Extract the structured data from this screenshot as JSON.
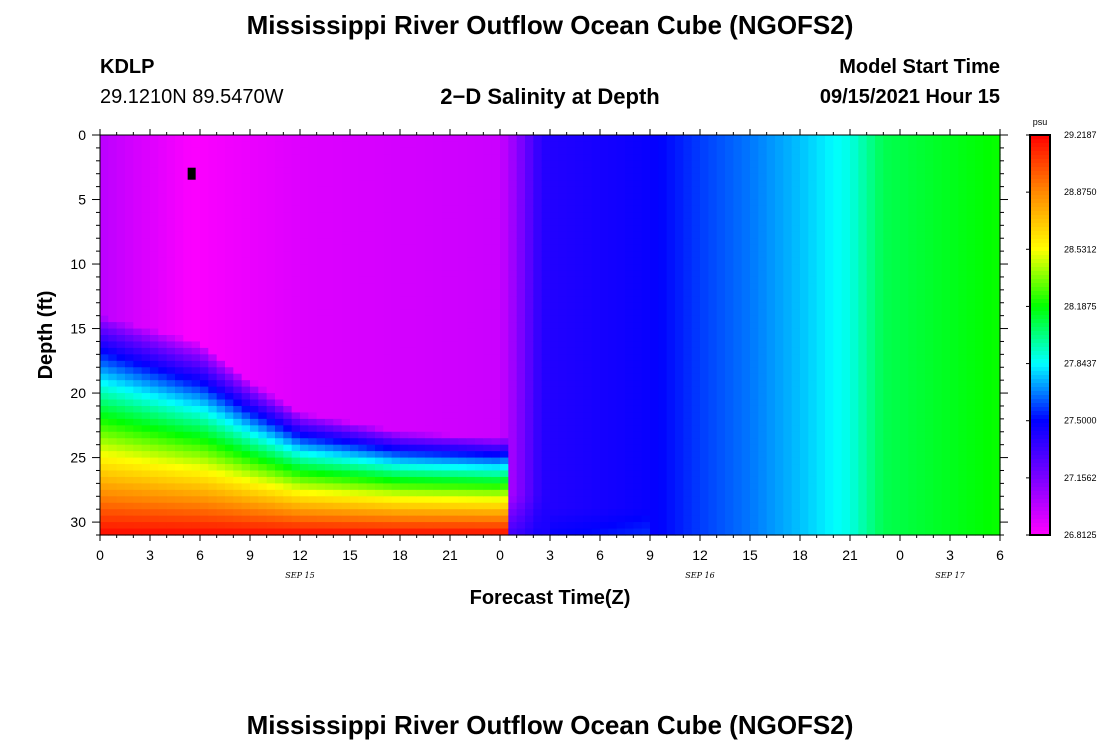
{
  "header": {
    "title": "Mississippi River Outflow Ocean Cube (NGOFS2)",
    "station_id": "KDLP",
    "station_coords": "29.1210N  89.5470W",
    "subtitle": "2−D Salinity at Depth",
    "model_start_label": "Model Start Time",
    "model_start_value": "09/15/2021 Hour 15"
  },
  "footer": {
    "title": "Mississippi River Outflow Ocean Cube (NGOFS2)"
  },
  "chart_data": {
    "type": "heatmap",
    "variable": "Salinity",
    "units": "psu",
    "xlabel": "Forecast Time(Z)",
    "ylabel": "Depth (ft)",
    "x_tick_labels": [
      "0",
      "3",
      "6",
      "9",
      "12",
      "15",
      "18",
      "21",
      "0",
      "3",
      "6",
      "9",
      "12",
      "15",
      "18",
      "21",
      "0",
      "3",
      "6"
    ],
    "x_hours": [
      0,
      3,
      6,
      9,
      12,
      15,
      18,
      21,
      24,
      27,
      30,
      33,
      36,
      39,
      42,
      45,
      48,
      51,
      54
    ],
    "date_labels": [
      {
        "label": "SEP 15",
        "hour": 12
      },
      {
        "label": "SEP 16",
        "hour": 36
      },
      {
        "label": "SEP 17",
        "hour": 51
      }
    ],
    "y_ticks": [
      0,
      5,
      10,
      15,
      20,
      25,
      30
    ],
    "ylim": [
      0,
      31
    ],
    "xlim": [
      0,
      54
    ],
    "y_inverted": true,
    "colorbar": {
      "min": 26.8125,
      "max": 29.2187,
      "tick_labels": [
        "29.2187",
        "28.8750",
        "28.5312",
        "28.1875",
        "27.8437",
        "27.5000",
        "27.1562",
        "26.8125"
      ],
      "tick_values": [
        29.2187,
        28.875,
        28.5312,
        28.1875,
        27.8437,
        27.5,
        27.1562,
        26.8125
      ],
      "colors": [
        "#ff00ff",
        "#7b00ff",
        "#0000ff",
        "#00ffff",
        "#00ff00",
        "#ffff00",
        "#ff8800",
        "#ff0000"
      ]
    },
    "surface_salinity_by_hour": [
      {
        "hour": 0,
        "value": 26.99
      },
      {
        "hour": 5.5,
        "value": 26.82
      },
      {
        "hour": 12,
        "value": 26.9
      },
      {
        "hour": 24,
        "value": 26.95
      },
      {
        "hour": 25,
        "value": 27.1
      },
      {
        "hour": 26.5,
        "value": 27.4
      },
      {
        "hour": 30,
        "value": 27.44
      },
      {
        "hour": 33,
        "value": 27.48
      },
      {
        "hour": 36,
        "value": 27.58
      },
      {
        "hour": 39,
        "value": 27.66
      },
      {
        "hour": 42,
        "value": 27.76
      },
      {
        "hour": 45,
        "value": 27.88
      },
      {
        "hour": 47,
        "value": 28.08
      },
      {
        "hour": 54,
        "value": 28.2
      }
    ],
    "halocline_depth_by_hour": [
      {
        "hour": 0,
        "depth": 17
      },
      {
        "hour": 6,
        "depth": 19
      },
      {
        "hour": 9,
        "depth": 22
      },
      {
        "hour": 12,
        "depth": 24.5
      },
      {
        "hour": 18,
        "depth": 26
      },
      {
        "hour": 24,
        "depth": 26.5
      }
    ],
    "bottom_salinity": 29.2,
    "marker": {
      "hour": 5.5,
      "depth": 3
    }
  }
}
